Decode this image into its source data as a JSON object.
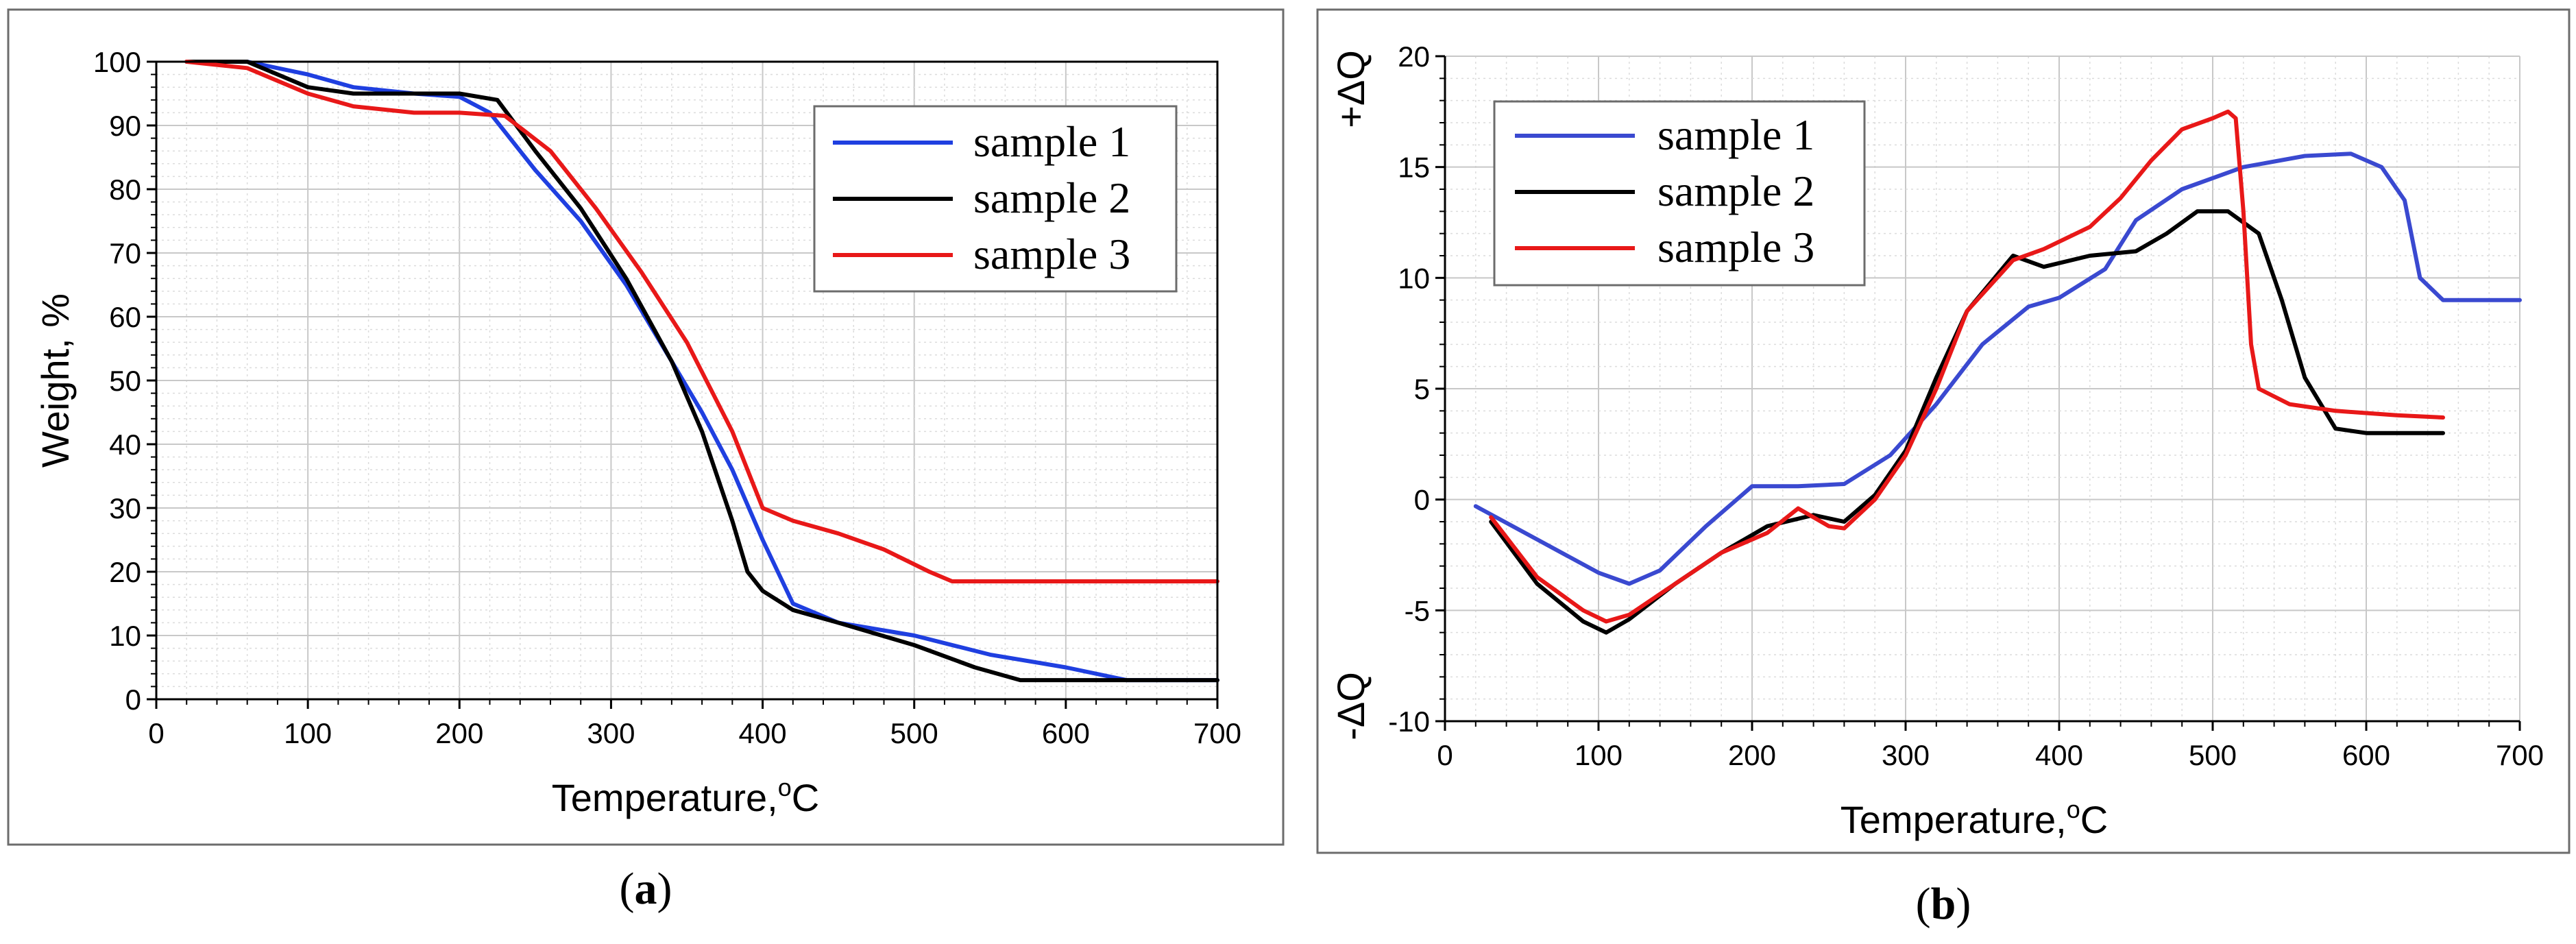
{
  "figure": {
    "panels": [
      {
        "label_open": "(",
        "label_letter": "a",
        "label_close": ")"
      },
      {
        "label_open": "(",
        "label_letter": "b",
        "label_close": ")"
      }
    ]
  },
  "chart_data": [
    {
      "type": "line",
      "panel": "a",
      "title": "",
      "xlabel": "Temperature,",
      "xlabel_unit": "oC",
      "ylabel": "Weight, %",
      "xlim": [
        0,
        700
      ],
      "ylim": [
        0,
        100
      ],
      "xticks": [
        0,
        100,
        200,
        300,
        400,
        500,
        600,
        700
      ],
      "yticks": [
        0,
        10,
        20,
        30,
        40,
        50,
        60,
        70,
        80,
        90,
        100
      ],
      "grid": true,
      "legend_position": "top-right",
      "series": [
        {
          "name": "sample 1",
          "color": "#1f3fe0",
          "x": [
            20,
            60,
            100,
            130,
            170,
            200,
            220,
            250,
            280,
            310,
            340,
            360,
            380,
            400,
            420,
            450,
            500,
            550,
            600,
            640,
            700
          ],
          "y": [
            100,
            100,
            98,
            96,
            95,
            94.5,
            92,
            83,
            75,
            65,
            53,
            45,
            36,
            25,
            15,
            12,
            10,
            7,
            5,
            3,
            3
          ]
        },
        {
          "name": "sample 2",
          "color": "#000000",
          "x": [
            20,
            60,
            100,
            130,
            170,
            200,
            225,
            250,
            280,
            310,
            340,
            360,
            380,
            390,
            400,
            420,
            450,
            500,
            540,
            570,
            700
          ],
          "y": [
            100,
            100,
            96,
            95,
            95,
            95,
            94,
            86,
            77,
            66,
            53,
            42,
            28,
            20,
            17,
            14,
            12,
            8.5,
            5,
            3,
            3
          ]
        },
        {
          "name": "sample 3",
          "color": "#e81818",
          "x": [
            20,
            60,
            100,
            130,
            170,
            200,
            230,
            260,
            290,
            320,
            350,
            380,
            400,
            420,
            450,
            480,
            510,
            525,
            700
          ],
          "y": [
            100,
            99,
            95,
            93,
            92,
            92,
            91.5,
            86,
            77,
            67,
            56,
            42,
            30,
            28,
            26,
            23.5,
            20,
            18.5,
            18.5
          ]
        }
      ]
    },
    {
      "type": "line",
      "panel": "b",
      "title": "",
      "xlabel": "Temperature,",
      "xlabel_unit": "oC",
      "ylabel_top": "+ΔQ",
      "ylabel_bottom": "-ΔQ",
      "xlim": [
        0,
        700
      ],
      "ylim": [
        -10,
        20
      ],
      "xticks": [
        0,
        100,
        200,
        300,
        400,
        500,
        600,
        700
      ],
      "yticks": [
        -10,
        -5,
        0,
        5,
        10,
        15,
        20
      ],
      "grid": true,
      "legend_position": "top-left",
      "series": [
        {
          "name": "sample 1",
          "color": "#3a49d0",
          "x": [
            20,
            60,
            100,
            120,
            140,
            170,
            200,
            230,
            260,
            290,
            320,
            350,
            380,
            400,
            430,
            450,
            480,
            520,
            560,
            590,
            610,
            625,
            635,
            650,
            700
          ],
          "y": [
            -0.3,
            -1.8,
            -3.3,
            -3.8,
            -3.2,
            -1.2,
            0.6,
            0.6,
            0.7,
            2.0,
            4.3,
            7.0,
            8.7,
            9.1,
            10.4,
            12.6,
            14.0,
            15.0,
            15.5,
            15.6,
            15.0,
            13.5,
            10.0,
            9.0,
            9.0
          ]
        },
        {
          "name": "sample 2",
          "color": "#000000",
          "x": [
            30,
            60,
            90,
            105,
            120,
            150,
            180,
            210,
            240,
            260,
            280,
            300,
            320,
            340,
            370,
            390,
            420,
            450,
            470,
            490,
            510,
            530,
            545,
            560,
            580,
            600,
            650
          ],
          "y": [
            -1.0,
            -3.8,
            -5.5,
            -6.0,
            -5.4,
            -3.8,
            -2.4,
            -1.2,
            -0.7,
            -1.0,
            0.2,
            2.2,
            5.5,
            8.5,
            11.0,
            10.5,
            11.0,
            11.2,
            12.0,
            13.0,
            13.0,
            12.0,
            9.0,
            5.5,
            3.2,
            3.0,
            3.0
          ]
        },
        {
          "name": "sample 3",
          "color": "#e81818",
          "x": [
            30,
            60,
            90,
            105,
            120,
            150,
            180,
            210,
            230,
            250,
            260,
            280,
            300,
            320,
            340,
            370,
            390,
            420,
            440,
            460,
            480,
            500,
            510,
            515,
            520,
            525,
            530,
            550,
            580,
            620,
            650
          ],
          "y": [
            -0.8,
            -3.5,
            -5.0,
            -5.5,
            -5.2,
            -3.8,
            -2.4,
            -1.5,
            -0.4,
            -1.2,
            -1.3,
            0.0,
            2.0,
            5.0,
            8.5,
            10.8,
            11.3,
            12.3,
            13.6,
            15.3,
            16.7,
            17.2,
            17.5,
            17.2,
            13.0,
            7.0,
            5.0,
            4.3,
            4.0,
            3.8,
            3.7
          ]
        }
      ]
    }
  ]
}
